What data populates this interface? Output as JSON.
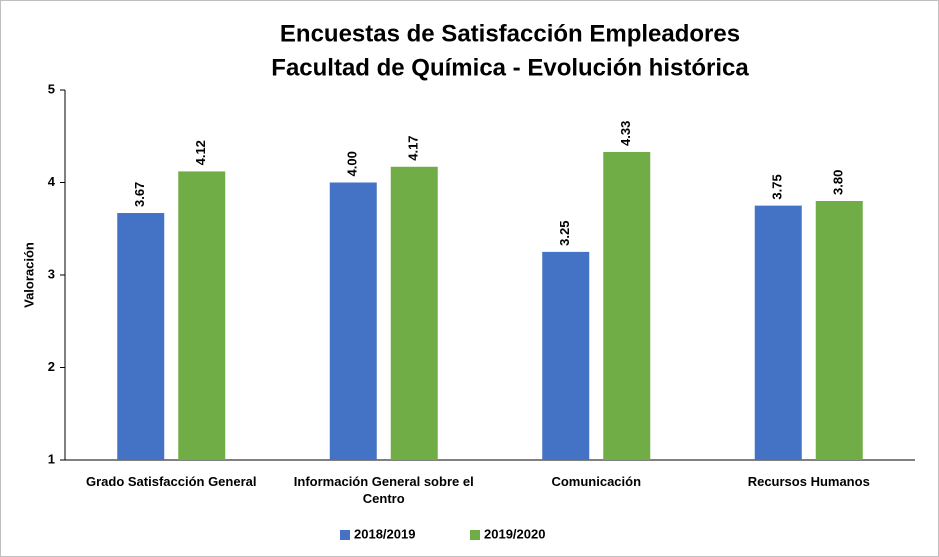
{
  "chart_data": {
    "type": "bar",
    "title": "Encuestas de Satisfacción Empleadores",
    "subtitle": "Facultad de Química - Evolución histórica",
    "y_label": "Valoración",
    "categories": [
      "Grado Satisfacción General",
      "Información General sobre el Centro",
      "Comunicación",
      "Recursos Humanos"
    ],
    "series": [
      {
        "name": "2018/2019",
        "color": "#4472c4",
        "values": [
          3.67,
          4,
          3.25,
          3.75
        ],
        "value_labels": [
          "3.67",
          "4.00",
          "3.25",
          "3.75"
        ]
      },
      {
        "name": "2019/2020",
        "color": "#70ad47",
        "values": [
          4.12,
          4.17,
          4.33,
          3.8
        ],
        "value_labels": [
          "4.12",
          "4.17",
          "4.33",
          "3.80"
        ]
      }
    ],
    "ylim": [
      1,
      5
    ],
    "yticks": [
      1,
      2,
      3,
      4,
      5
    ],
    "grid": false,
    "legend": "bottom"
  }
}
